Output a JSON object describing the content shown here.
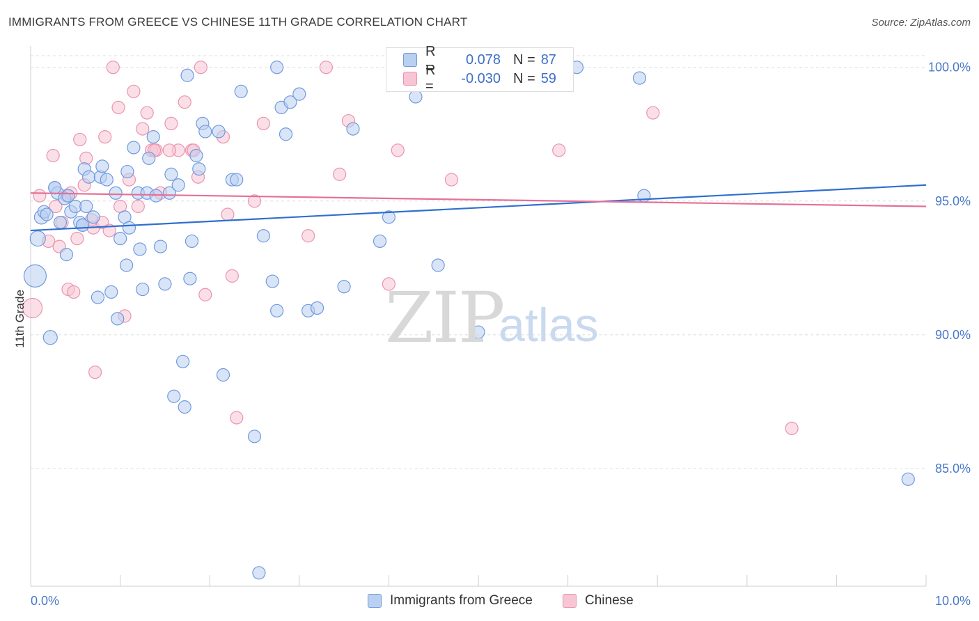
{
  "title": "IMMIGRANTS FROM GREECE VS CHINESE 11TH GRADE CORRELATION CHART",
  "source": "Source: ZipAtlas.com",
  "watermark": {
    "zip": "ZIP",
    "atlas": "atlas"
  },
  "legend": {
    "rows": [
      {
        "r_label": "R =",
        "r_value": "0.078",
        "n_label": "N =",
        "n_value": "87"
      },
      {
        "r_label": "R =",
        "r_value": "-0.030",
        "n_label": "N =",
        "n_value": "59"
      }
    ]
  },
  "colors": {
    "blue_fill": "#b9d0f1",
    "blue_stroke": "#6f9ae0",
    "blue_line": "#2f6fd0",
    "pink_fill": "#f7c5d4",
    "pink_stroke": "#ea93b0",
    "pink_line": "#e56f98",
    "grid": "#dcdcdc",
    "tick_text": "#4a78c9"
  },
  "chart_data": {
    "type": "scatter",
    "title": "IMMIGRANTS FROM GREECE VS CHINESE 11TH GRADE CORRELATION CHART",
    "xlabel": "",
    "ylabel": "11th Grade",
    "xlim": [
      0,
      10
    ],
    "ylim": [
      80.6,
      100.8
    ],
    "x_tick_labels": [
      "0.0%",
      "10.0%"
    ],
    "y_ticks": [
      85,
      90,
      95,
      100
    ],
    "y_tick_labels": [
      "85.0%",
      "90.0%",
      "95.0%",
      "100.0%"
    ],
    "grid": true,
    "legend_position": "bottom",
    "series": [
      {
        "name": "Immigrants from Greece",
        "stats": {
          "r": 0.078,
          "n": 87
        },
        "trend": {
          "x": [
            0,
            10
          ],
          "y": [
            93.9,
            95.6
          ]
        },
        "points": [
          {
            "x": 0.05,
            "y": 92.2,
            "s": 16
          },
          {
            "x": 0.08,
            "y": 93.6,
            "s": 11
          },
          {
            "x": 0.12,
            "y": 94.4,
            "s": 10
          },
          {
            "x": 0.15,
            "y": 94.6,
            "s": 9
          },
          {
            "x": 0.18,
            "y": 94.5,
            "s": 9
          },
          {
            "x": 0.22,
            "y": 89.9,
            "s": 10
          },
          {
            "x": 0.27,
            "y": 95.5,
            "s": 9
          },
          {
            "x": 0.3,
            "y": 95.3,
            "s": 9
          },
          {
            "x": 0.33,
            "y": 94.2,
            "s": 9
          },
          {
            "x": 0.38,
            "y": 95.1,
            "s": 9
          },
          {
            "x": 0.4,
            "y": 93.0,
            "s": 9
          },
          {
            "x": 0.42,
            "y": 95.2,
            "s": 9
          },
          {
            "x": 0.45,
            "y": 94.6,
            "s": 9
          },
          {
            "x": 0.5,
            "y": 94.8,
            "s": 9
          },
          {
            "x": 0.55,
            "y": 94.2,
            "s": 9
          },
          {
            "x": 0.58,
            "y": 94.1,
            "s": 9
          },
          {
            "x": 0.6,
            "y": 96.2,
            "s": 9
          },
          {
            "x": 0.62,
            "y": 94.8,
            "s": 9
          },
          {
            "x": 0.65,
            "y": 95.9,
            "s": 9
          },
          {
            "x": 0.7,
            "y": 94.4,
            "s": 9
          },
          {
            "x": 0.75,
            "y": 91.4,
            "s": 9
          },
          {
            "x": 0.78,
            "y": 95.9,
            "s": 9
          },
          {
            "x": 0.8,
            "y": 96.3,
            "s": 9
          },
          {
            "x": 0.85,
            "y": 95.8,
            "s": 9
          },
          {
            "x": 0.9,
            "y": 91.6,
            "s": 9
          },
          {
            "x": 0.95,
            "y": 95.3,
            "s": 9
          },
          {
            "x": 0.97,
            "y": 90.6,
            "s": 9
          },
          {
            "x": 1.0,
            "y": 93.6,
            "s": 9
          },
          {
            "x": 1.05,
            "y": 94.4,
            "s": 9
          },
          {
            "x": 1.07,
            "y": 92.6,
            "s": 9
          },
          {
            "x": 1.1,
            "y": 94.0,
            "s": 9
          },
          {
            "x": 1.15,
            "y": 97.0,
            "s": 9
          },
          {
            "x": 1.2,
            "y": 95.3,
            "s": 9
          },
          {
            "x": 1.22,
            "y": 93.2,
            "s": 9
          },
          {
            "x": 1.25,
            "y": 91.7,
            "s": 9
          },
          {
            "x": 1.3,
            "y": 95.3,
            "s": 9
          },
          {
            "x": 1.32,
            "y": 96.6,
            "s": 9
          },
          {
            "x": 1.37,
            "y": 97.4,
            "s": 9
          },
          {
            "x": 1.4,
            "y": 95.2,
            "s": 9
          },
          {
            "x": 1.45,
            "y": 93.3,
            "s": 9
          },
          {
            "x": 1.5,
            "y": 91.9,
            "s": 9
          },
          {
            "x": 1.55,
            "y": 95.3,
            "s": 9
          },
          {
            "x": 1.57,
            "y": 96.0,
            "s": 9
          },
          {
            "x": 1.6,
            "y": 87.7,
            "s": 9
          },
          {
            "x": 1.65,
            "y": 95.6,
            "s": 9
          },
          {
            "x": 1.7,
            "y": 89.0,
            "s": 9
          },
          {
            "x": 1.72,
            "y": 87.3,
            "s": 9
          },
          {
            "x": 1.75,
            "y": 99.7,
            "s": 9
          },
          {
            "x": 1.78,
            "y": 92.1,
            "s": 9
          },
          {
            "x": 1.8,
            "y": 93.5,
            "s": 9
          },
          {
            "x": 1.85,
            "y": 96.7,
            "s": 9
          },
          {
            "x": 1.88,
            "y": 96.2,
            "s": 9
          },
          {
            "x": 1.92,
            "y": 97.9,
            "s": 9
          },
          {
            "x": 1.95,
            "y": 97.6,
            "s": 9
          },
          {
            "x": 2.1,
            "y": 97.6,
            "s": 9
          },
          {
            "x": 2.15,
            "y": 88.5,
            "s": 9
          },
          {
            "x": 2.25,
            "y": 95.8,
            "s": 9
          },
          {
            "x": 2.3,
            "y": 95.8,
            "s": 9
          },
          {
            "x": 2.35,
            "y": 99.1,
            "s": 9
          },
          {
            "x": 2.5,
            "y": 86.2,
            "s": 9
          },
          {
            "x": 2.55,
            "y": 81.1,
            "s": 9
          },
          {
            "x": 2.6,
            "y": 93.7,
            "s": 9
          },
          {
            "x": 2.7,
            "y": 92.0,
            "s": 9
          },
          {
            "x": 2.75,
            "y": 100.0,
            "s": 9
          },
          {
            "x": 2.8,
            "y": 98.5,
            "s": 9
          },
          {
            "x": 2.85,
            "y": 97.5,
            "s": 9
          },
          {
            "x": 2.9,
            "y": 98.7,
            "s": 9
          },
          {
            "x": 3.0,
            "y": 99.0,
            "s": 9
          },
          {
            "x": 3.1,
            "y": 90.9,
            "s": 9
          },
          {
            "x": 3.2,
            "y": 91.0,
            "s": 9
          },
          {
            "x": 3.5,
            "y": 91.8,
            "s": 9
          },
          {
            "x": 3.6,
            "y": 97.7,
            "s": 9
          },
          {
            "x": 3.9,
            "y": 93.5,
            "s": 9
          },
          {
            "x": 4.0,
            "y": 94.4,
            "s": 9
          },
          {
            "x": 4.3,
            "y": 98.9,
            "s": 9
          },
          {
            "x": 4.55,
            "y": 92.6,
            "s": 9
          },
          {
            "x": 5.0,
            "y": 90.1,
            "s": 9
          },
          {
            "x": 5.65,
            "y": 100.0,
            "s": 9
          },
          {
            "x": 5.75,
            "y": 100.0,
            "s": 9
          },
          {
            "x": 6.1,
            "y": 100.0,
            "s": 9
          },
          {
            "x": 6.8,
            "y": 99.6,
            "s": 9
          },
          {
            "x": 6.85,
            "y": 95.2,
            "s": 9
          },
          {
            "x": 9.8,
            "y": 84.6,
            "s": 9
          },
          {
            "x": 2.75,
            "y": 90.9,
            "s": 9
          },
          {
            "x": 1.08,
            "y": 96.1,
            "s": 9
          },
          {
            "x": 0.58,
            "y": 94.1,
            "s": 9
          },
          {
            "x": 0.27,
            "y": 95.5,
            "s": 9
          }
        ]
      },
      {
        "name": "Chinese",
        "stats": {
          "r": -0.03,
          "n": 59
        },
        "trend": {
          "x": [
            0,
            10
          ],
          "y": [
            95.3,
            94.8
          ]
        },
        "points": [
          {
            "x": 0.02,
            "y": 91.0,
            "s": 14
          },
          {
            "x": 0.1,
            "y": 95.2,
            "s": 9
          },
          {
            "x": 0.2,
            "y": 93.5,
            "s": 9
          },
          {
            "x": 0.25,
            "y": 96.7,
            "s": 9
          },
          {
            "x": 0.28,
            "y": 94.8,
            "s": 9
          },
          {
            "x": 0.32,
            "y": 93.3,
            "s": 9
          },
          {
            "x": 0.35,
            "y": 94.2,
            "s": 9
          },
          {
            "x": 0.4,
            "y": 95.2,
            "s": 9
          },
          {
            "x": 0.42,
            "y": 91.7,
            "s": 9
          },
          {
            "x": 0.48,
            "y": 91.6,
            "s": 9
          },
          {
            "x": 0.52,
            "y": 93.6,
            "s": 9
          },
          {
            "x": 0.55,
            "y": 97.3,
            "s": 9
          },
          {
            "x": 0.6,
            "y": 95.6,
            "s": 9
          },
          {
            "x": 0.62,
            "y": 96.6,
            "s": 9
          },
          {
            "x": 0.7,
            "y": 94.0,
            "s": 9
          },
          {
            "x": 0.72,
            "y": 88.6,
            "s": 9
          },
          {
            "x": 0.8,
            "y": 94.2,
            "s": 9
          },
          {
            "x": 0.83,
            "y": 97.4,
            "s": 9
          },
          {
            "x": 0.88,
            "y": 93.9,
            "s": 9
          },
          {
            "x": 0.92,
            "y": 100.0,
            "s": 9
          },
          {
            "x": 0.98,
            "y": 98.5,
            "s": 9
          },
          {
            "x": 1.0,
            "y": 94.8,
            "s": 9
          },
          {
            "x": 1.05,
            "y": 90.7,
            "s": 9
          },
          {
            "x": 1.1,
            "y": 95.8,
            "s": 9
          },
          {
            "x": 1.15,
            "y": 99.1,
            "s": 9
          },
          {
            "x": 1.2,
            "y": 94.8,
            "s": 9
          },
          {
            "x": 1.25,
            "y": 97.7,
            "s": 9
          },
          {
            "x": 1.3,
            "y": 98.3,
            "s": 9
          },
          {
            "x": 1.35,
            "y": 96.9,
            "s": 9
          },
          {
            "x": 1.45,
            "y": 95.3,
            "s": 9
          },
          {
            "x": 1.57,
            "y": 97.9,
            "s": 9
          },
          {
            "x": 1.65,
            "y": 96.9,
            "s": 9
          },
          {
            "x": 1.72,
            "y": 98.7,
            "s": 9
          },
          {
            "x": 1.8,
            "y": 96.9,
            "s": 9
          },
          {
            "x": 1.87,
            "y": 95.9,
            "s": 9
          },
          {
            "x": 1.9,
            "y": 100.0,
            "s": 9
          },
          {
            "x": 1.95,
            "y": 91.5,
            "s": 9
          },
          {
            "x": 2.15,
            "y": 97.4,
            "s": 9
          },
          {
            "x": 2.2,
            "y": 94.5,
            "s": 9
          },
          {
            "x": 2.25,
            "y": 92.2,
            "s": 9
          },
          {
            "x": 2.3,
            "y": 86.9,
            "s": 9
          },
          {
            "x": 2.5,
            "y": 95.0,
            "s": 9
          },
          {
            "x": 2.6,
            "y": 97.9,
            "s": 9
          },
          {
            "x": 3.1,
            "y": 93.7,
            "s": 9
          },
          {
            "x": 3.3,
            "y": 100.0,
            "s": 9
          },
          {
            "x": 3.45,
            "y": 96.0,
            "s": 9
          },
          {
            "x": 3.55,
            "y": 98.0,
            "s": 9
          },
          {
            "x": 4.0,
            "y": 91.9,
            "s": 9
          },
          {
            "x": 4.1,
            "y": 96.9,
            "s": 9
          },
          {
            "x": 4.7,
            "y": 95.8,
            "s": 9
          },
          {
            "x": 5.9,
            "y": 96.9,
            "s": 9
          },
          {
            "x": 6.95,
            "y": 98.3,
            "s": 9
          },
          {
            "x": 8.5,
            "y": 86.5,
            "s": 9
          },
          {
            "x": 1.55,
            "y": 96.9,
            "s": 9
          },
          {
            "x": 1.4,
            "y": 96.9,
            "s": 9
          },
          {
            "x": 0.68,
            "y": 94.3,
            "s": 9
          },
          {
            "x": 0.45,
            "y": 95.3,
            "s": 9
          },
          {
            "x": 1.38,
            "y": 96.9,
            "s": 9
          },
          {
            "x": 1.82,
            "y": 96.9,
            "s": 9
          }
        ]
      }
    ]
  }
}
